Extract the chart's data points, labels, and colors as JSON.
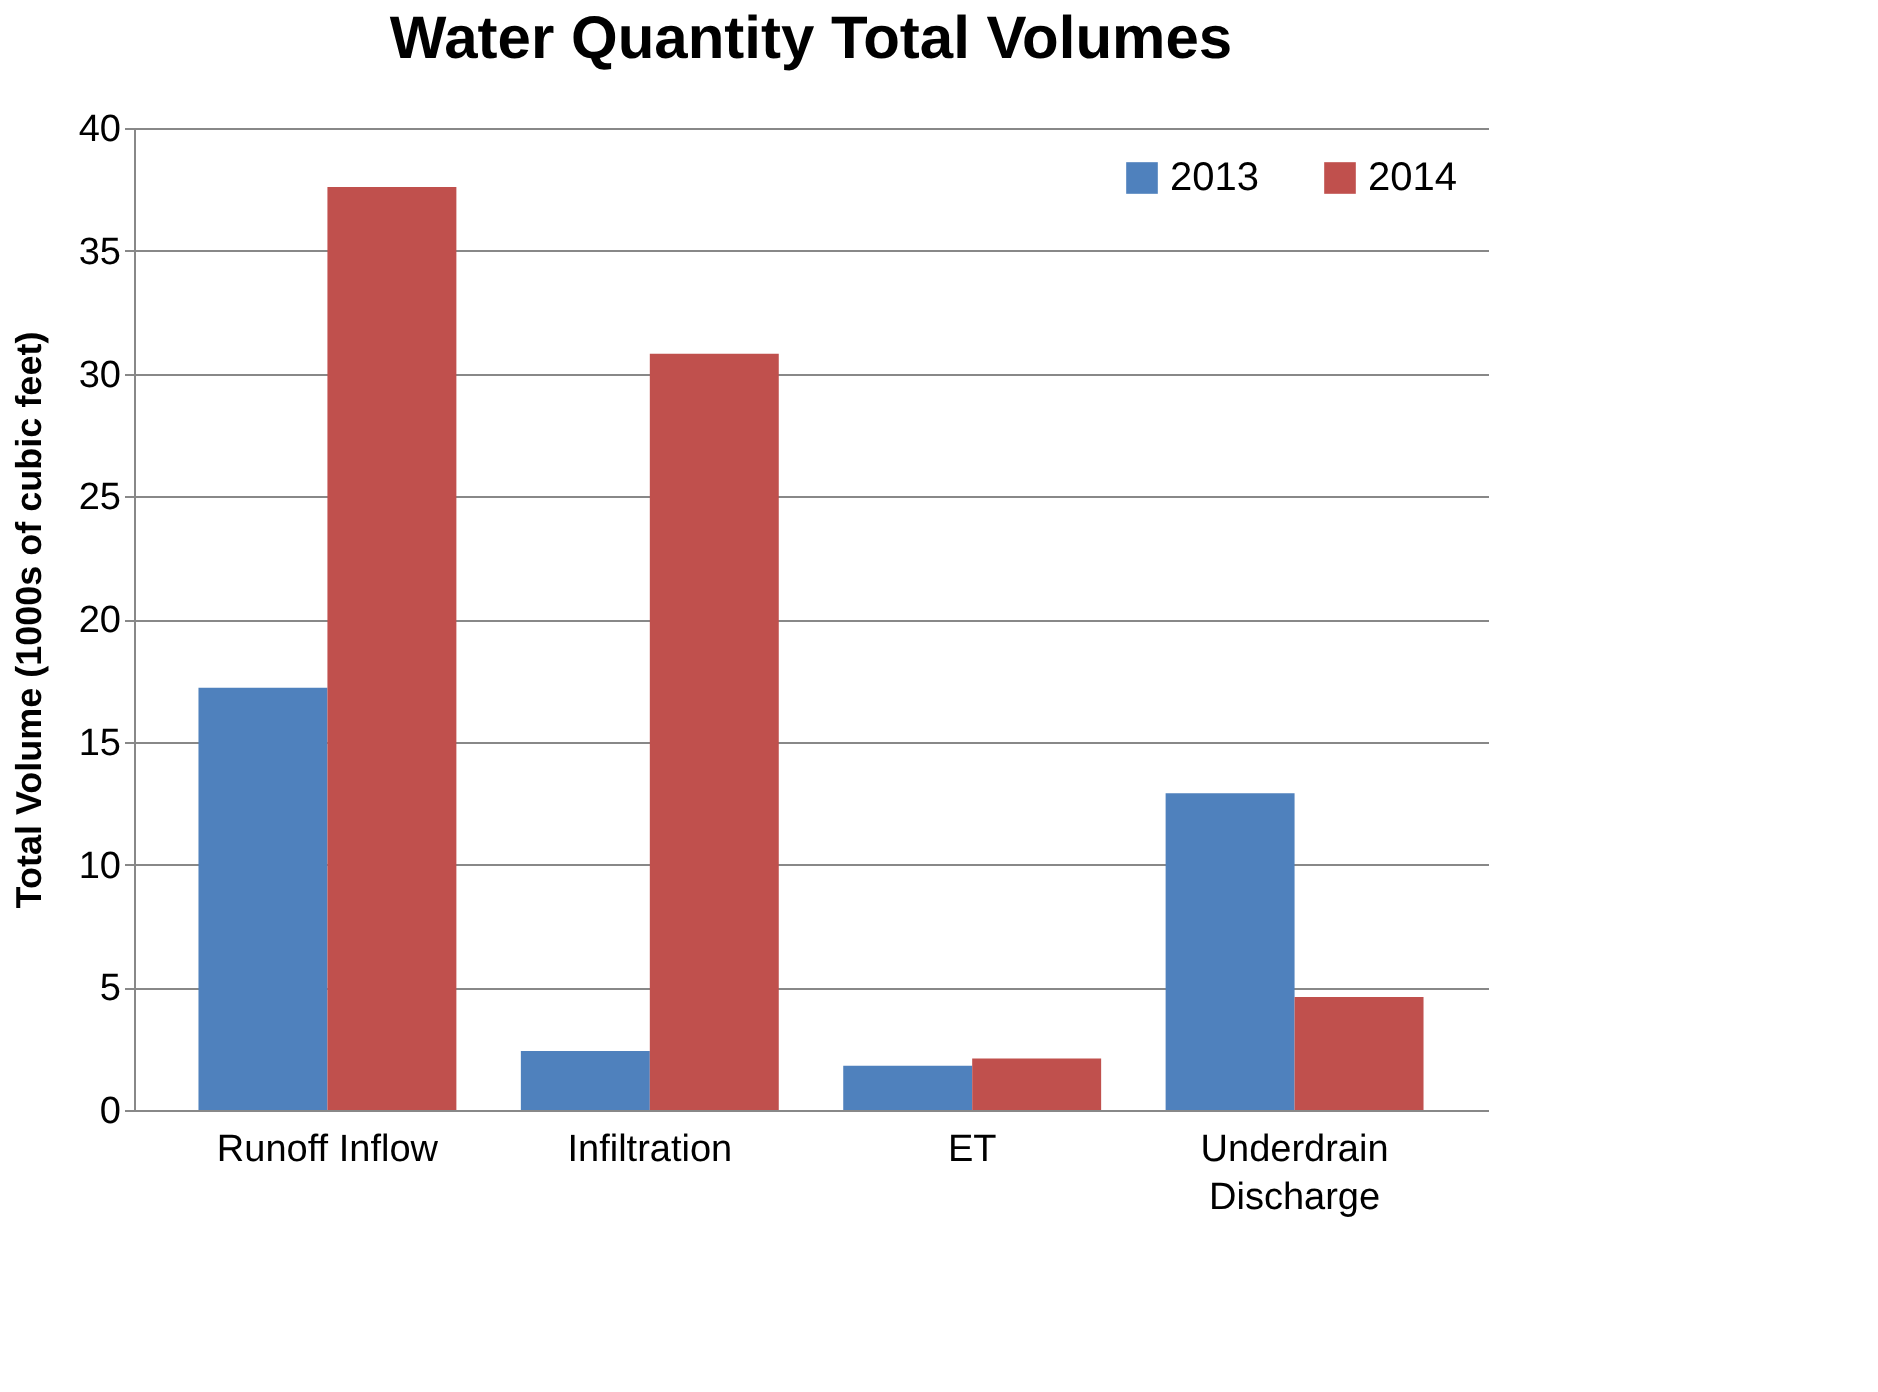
{
  "chart_data": {
    "type": "bar",
    "title": "Water Quantity Total Volumes",
    "ylabel": "Total Volume (1000s of cubic feet)",
    "categories": [
      "Runoff Inflow",
      "Infiltration",
      "ET",
      "Underdrain Discharge"
    ],
    "series": [
      {
        "name": "2013",
        "color": "#4f81bd",
        "values": [
          17.2,
          2.4,
          1.8,
          12.9
        ]
      },
      {
        "name": "2014",
        "color": "#c0504d",
        "values": [
          37.6,
          30.8,
          2.1,
          4.6
        ]
      }
    ],
    "ylim": [
      0,
      40
    ],
    "yticks": [
      0,
      5,
      10,
      15,
      20,
      25,
      30,
      35,
      40
    ],
    "grid": "y",
    "legend": "top right"
  }
}
